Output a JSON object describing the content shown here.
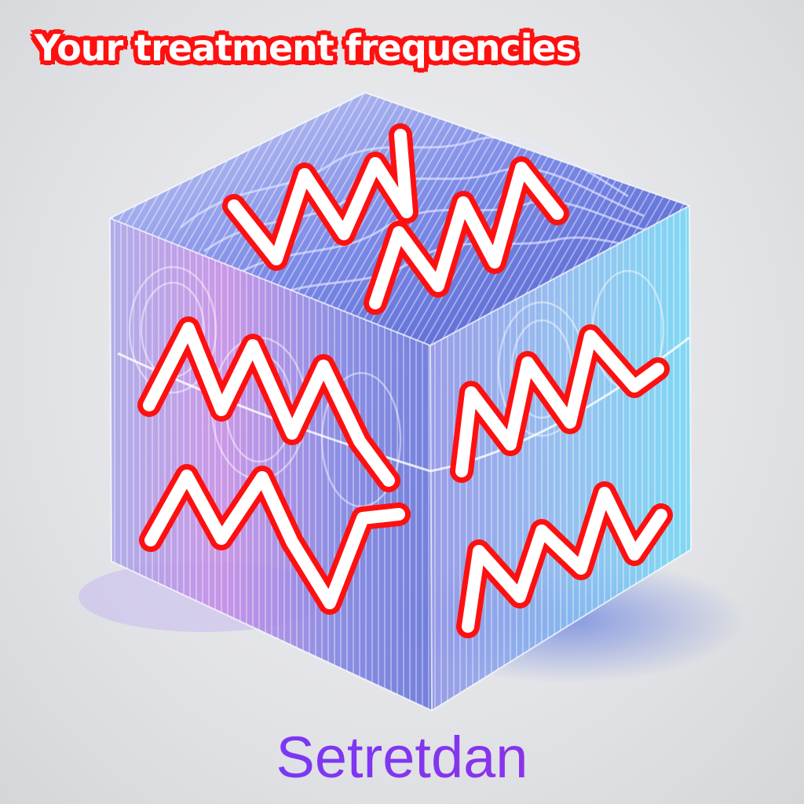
{
  "title": "Your treatment frequencies",
  "caption": "Setretdan",
  "colors": {
    "title_fill": "#ffffff",
    "title_outline": "#ff1010",
    "caption": "#8a2be2",
    "wave_stroke": "#ffffff",
    "wave_outline": "#ff1010",
    "cube_blue": "#5a6fe0",
    "cube_violet": "#b86be8",
    "cube_cyan": "#4fd8ff"
  },
  "icons": [
    "zigzag-wave-icon",
    "glass-cube-illustration"
  ]
}
